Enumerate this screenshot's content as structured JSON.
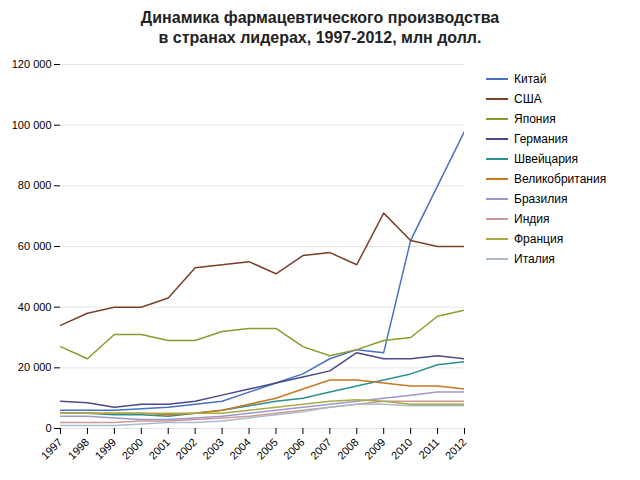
{
  "chart_data": {
    "type": "line",
    "title": "Динамика фармацевтического производства",
    "subtitle": "в странах лидерах, 1997-2012, млн долл.",
    "x": [
      1997,
      1998,
      1999,
      2000,
      2001,
      2002,
      2003,
      2004,
      2005,
      2006,
      2007,
      2008,
      2009,
      2010,
      2011,
      2012
    ],
    "series": [
      {
        "name": "Китай",
        "color": "#4472C4",
        "values": [
          6000,
          6000,
          6000,
          6500,
          7000,
          8000,
          9000,
          12000,
          15000,
          18000,
          23000,
          26000,
          25000,
          62000,
          80000,
          98000
        ]
      },
      {
        "name": "США",
        "color": "#7B3F2A",
        "values": [
          34000,
          38000,
          40000,
          40000,
          43000,
          53000,
          54000,
          55000,
          51000,
          57000,
          58000,
          54000,
          71000,
          62000,
          60000,
          60000
        ]
      },
      {
        "name": "Япония",
        "color": "#8B9A2A",
        "values": [
          27000,
          23000,
          31000,
          31000,
          29000,
          29000,
          32000,
          33000,
          33000,
          27000,
          24000,
          26000,
          29000,
          30000,
          37000,
          39000
        ]
      },
      {
        "name": "Германия",
        "color": "#4A4A8A",
        "values": [
          9000,
          8500,
          7000,
          8000,
          8000,
          9000,
          11000,
          13000,
          15000,
          17000,
          19000,
          25000,
          23000,
          23000,
          24000,
          23000
        ]
      },
      {
        "name": "Швейцария",
        "color": "#2A9090",
        "values": [
          5000,
          5000,
          4500,
          4500,
          4000,
          5000,
          6000,
          7500,
          9000,
          10000,
          12000,
          14000,
          16000,
          18000,
          21000,
          22000
        ]
      },
      {
        "name": "Великобритания",
        "color": "#CC7722",
        "values": [
          5000,
          5000,
          5000,
          5000,
          4500,
          5000,
          6000,
          8000,
          10000,
          13000,
          16000,
          16000,
          15000,
          14000,
          14000,
          13000
        ]
      },
      {
        "name": "Бразилия",
        "color": "#9999CC",
        "values": [
          4000,
          4000,
          3500,
          3000,
          3000,
          3500,
          4000,
          5000,
          6000,
          7000,
          8000,
          9000,
          10000,
          11000,
          12000,
          12000
        ]
      },
      {
        "name": "Индия",
        "color": "#CC9999",
        "values": [
          2000,
          2000,
          2000,
          2500,
          2500,
          3000,
          3500,
          4000,
          5000,
          6000,
          7000,
          8000,
          9000,
          9000,
          9000,
          9000
        ]
      },
      {
        "name": "Франция",
        "color": "#AAAA44",
        "values": [
          5000,
          5000,
          5000,
          5000,
          5000,
          5000,
          5000,
          6000,
          7000,
          8000,
          9000,
          9500,
          9000,
          8000,
          8000,
          8000
        ]
      },
      {
        "name": "Италия",
        "color": "#AABBCC",
        "values": [
          1000,
          1000,
          1000,
          1500,
          2000,
          2000,
          2500,
          3500,
          4500,
          5500,
          7000,
          8000,
          8000,
          7500,
          7500,
          7500
        ]
      }
    ],
    "xlim": [
      1997,
      2012
    ],
    "xticks": [
      1997,
      1998,
      1999,
      2000,
      2001,
      2002,
      2003,
      2004,
      2005,
      2006,
      2007,
      2008,
      2009,
      2010,
      2011,
      2012
    ],
    "ylim": [
      0,
      120000
    ],
    "yticks": [
      0,
      {
        "value": 20000,
        "label": "20 000"
      },
      {
        "value": 40000,
        "label": "40 000"
      },
      {
        "value": 60000,
        "label": "60 000"
      },
      {
        "value": 80000,
        "label": "80 000"
      },
      {
        "value": 100000,
        "label": "100 000"
      },
      {
        "value": 120000,
        "label": "120 000"
      }
    ],
    "grid": true,
    "legend": "right"
  }
}
